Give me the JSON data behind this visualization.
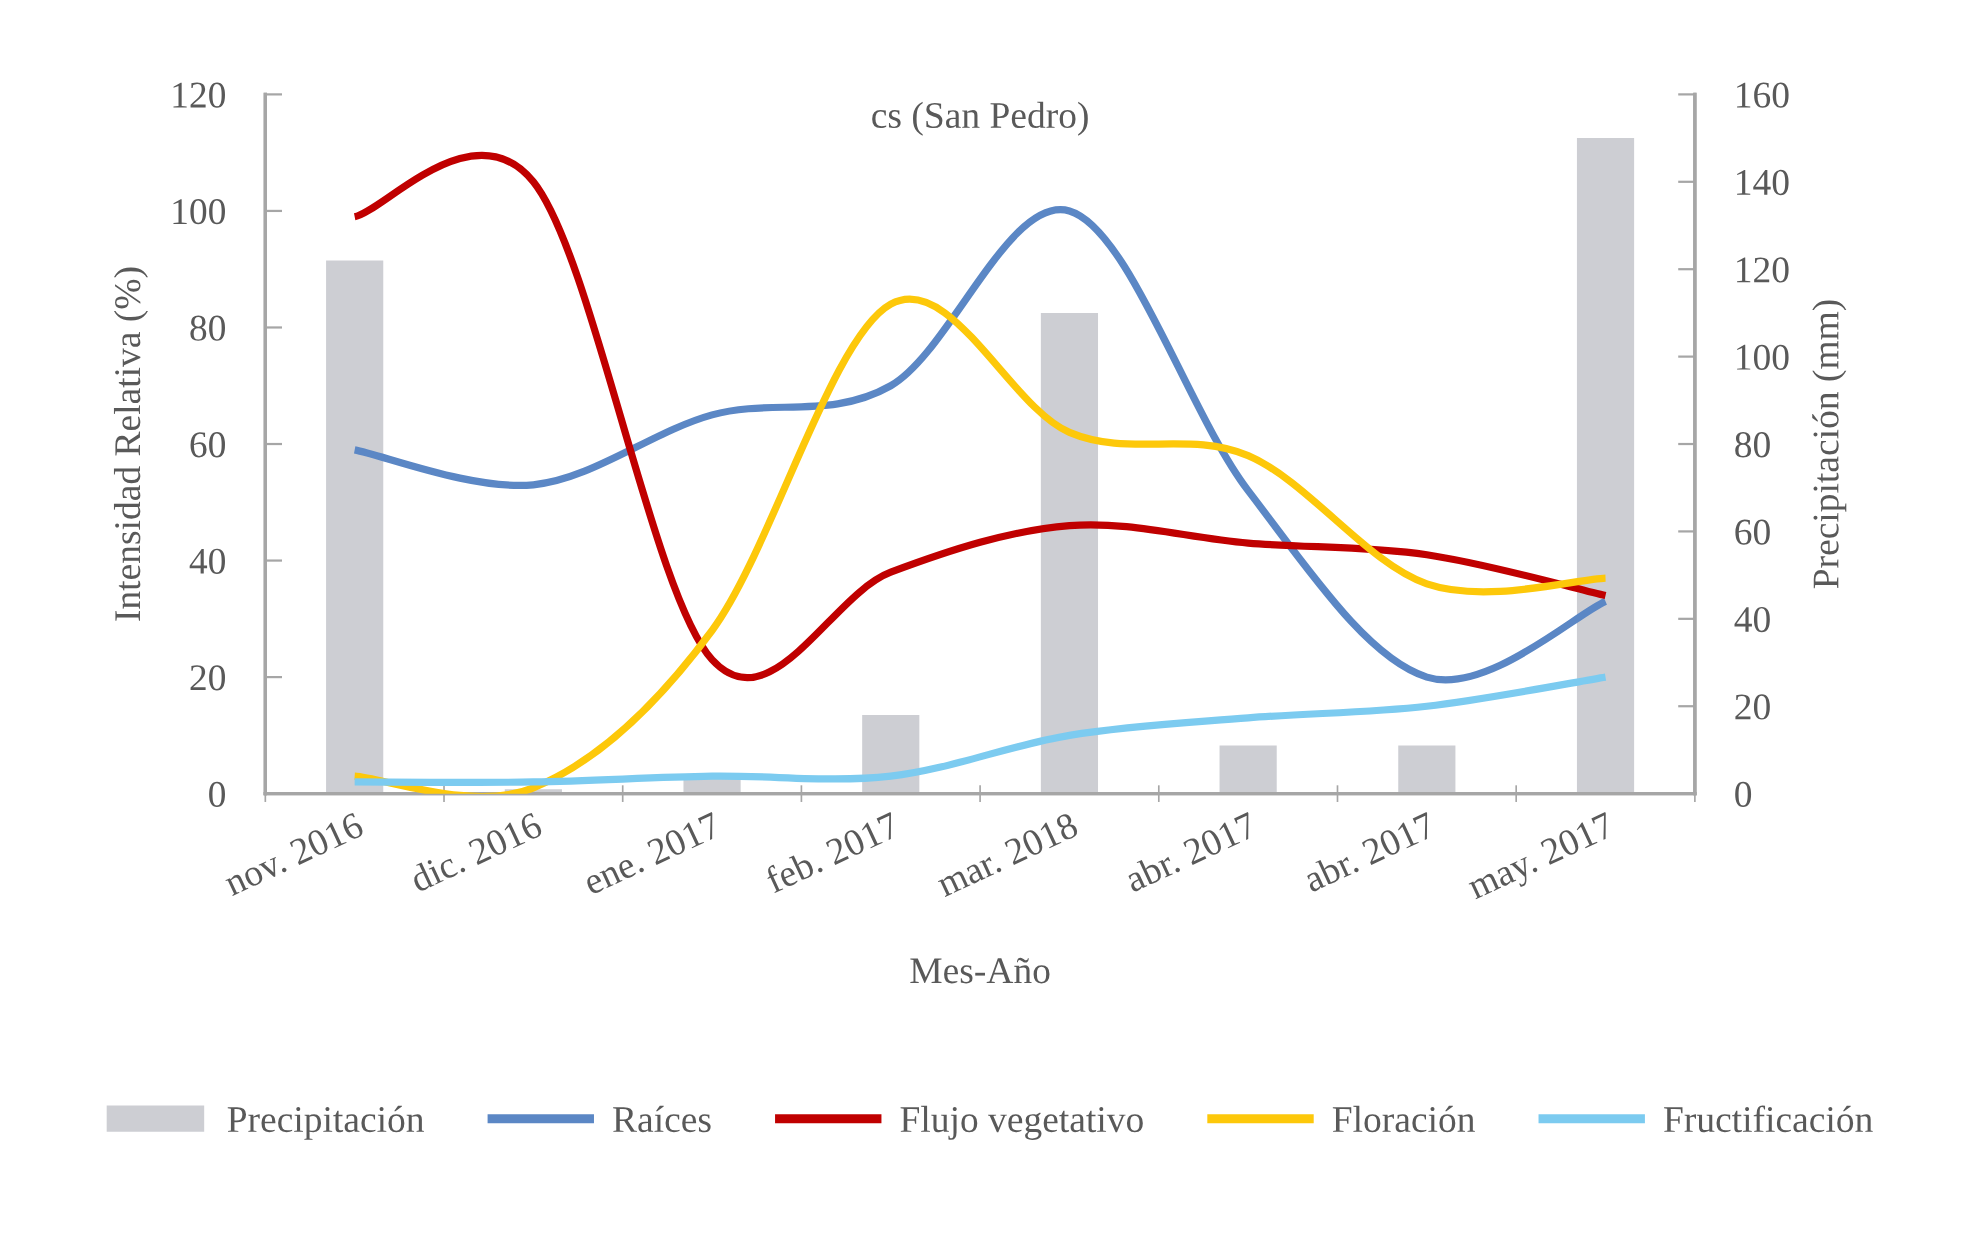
{
  "chart_data": {
    "type": "line",
    "title": "cs (San Pedro)",
    "xlabel": "Mes-Año",
    "ylabel": "Intensidad Relativa (%)",
    "y2label": "Precipitación (mm)",
    "categories": [
      "nov. 2016",
      "dic. 2016",
      "ene. 2017",
      "feb. 2017",
      "mar. 2018",
      "abr. 2017",
      "abr. 2017",
      "may. 2017"
    ],
    "series": [
      {
        "name": "Precipitación",
        "type": "bar",
        "axis": "y2",
        "color": "#cdced3",
        "values": [
          122,
          1,
          4,
          18,
          110,
          11,
          11,
          150
        ]
      },
      {
        "name": "Raíces",
        "color": "#5b87c5",
        "values": [
          59,
          53,
          65,
          70,
          100,
          52,
          20,
          33
        ]
      },
      {
        "name": "Flujo vegetativo",
        "color": "#c00000",
        "values": [
          99,
          105,
          23,
          38,
          46,
          43,
          41,
          34
        ]
      },
      {
        "name": "Floración",
        "color": "#fdc80a",
        "values": [
          3,
          1,
          28,
          84,
          62,
          58,
          36,
          37
        ]
      },
      {
        "name": "Fructificación",
        "color": "#7ccbf0",
        "values": [
          2,
          2,
          3,
          3,
          10,
          13,
          15,
          20
        ]
      }
    ],
    "ylim": [
      0,
      120
    ],
    "yticks": [
      0,
      20,
      40,
      60,
      80,
      100,
      120
    ],
    "y2lim": [
      0,
      160
    ],
    "y2ticks": [
      0,
      20,
      40,
      60,
      80,
      100,
      120,
      140,
      160
    ],
    "legend": "bottom"
  }
}
